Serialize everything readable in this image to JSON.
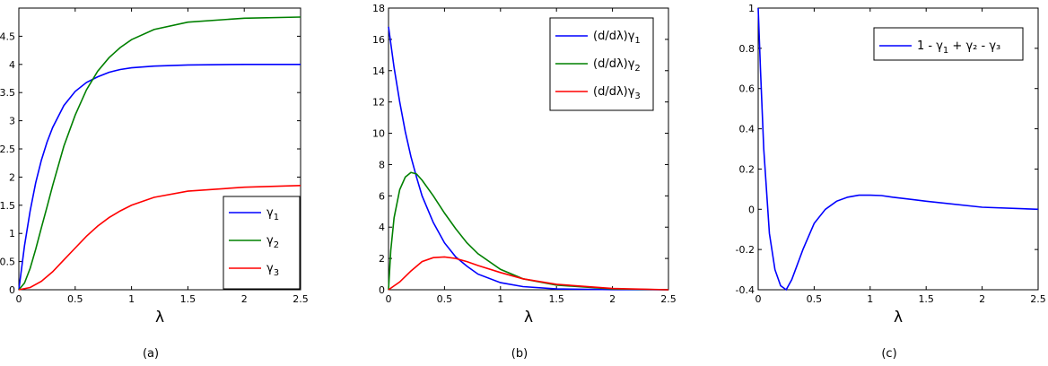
{
  "chart_data": [
    {
      "type": "line",
      "caption": "(a)",
      "xlabel": "λ",
      "ylabel": "",
      "xlim": [
        0,
        2.5
      ],
      "ylim": [
        0,
        5
      ],
      "xticks": [
        "0",
        "0.5",
        "1",
        "1.5",
        "2",
        "2.5"
      ],
      "yticks": [
        "0",
        "0.5",
        "1",
        "1.5",
        "2",
        "2.5",
        "3",
        "3.5",
        "4",
        "4.5"
      ],
      "legend_position": "bottom-right",
      "series": [
        {
          "name": "γ1",
          "legend_base": "γ",
          "legend_sub": "1",
          "legend_tail": "",
          "color": "#0000ff",
          "x": [
            0,
            0.05,
            0.1,
            0.15,
            0.2,
            0.25,
            0.3,
            0.4,
            0.5,
            0.6,
            0.7,
            0.8,
            0.9,
            1.0,
            1.2,
            1.5,
            2.0,
            2.5
          ],
          "y": [
            0,
            0.78,
            1.4,
            1.9,
            2.3,
            2.62,
            2.88,
            3.27,
            3.52,
            3.68,
            3.78,
            3.86,
            3.91,
            3.94,
            3.97,
            3.99,
            4.0,
            4.0
          ]
        },
        {
          "name": "γ2",
          "legend_base": "γ",
          "legend_sub": "2",
          "legend_tail": "",
          "color": "#008000",
          "x": [
            0,
            0.05,
            0.1,
            0.15,
            0.2,
            0.25,
            0.3,
            0.4,
            0.5,
            0.6,
            0.7,
            0.8,
            0.9,
            1.0,
            1.2,
            1.5,
            2.0,
            2.5
          ],
          "y": [
            0,
            0.12,
            0.38,
            0.72,
            1.1,
            1.47,
            1.85,
            2.55,
            3.1,
            3.55,
            3.88,
            4.12,
            4.3,
            4.44,
            4.62,
            4.75,
            4.82,
            4.84
          ]
        },
        {
          "name": "γ3",
          "legend_base": "γ",
          "legend_sub": "3",
          "legend_tail": "",
          "color": "#ff0000",
          "x": [
            0,
            0.1,
            0.2,
            0.3,
            0.4,
            0.5,
            0.6,
            0.7,
            0.8,
            0.9,
            1.0,
            1.2,
            1.5,
            2.0,
            2.5
          ],
          "y": [
            0,
            0.04,
            0.15,
            0.32,
            0.53,
            0.74,
            0.95,
            1.13,
            1.28,
            1.4,
            1.5,
            1.64,
            1.75,
            1.82,
            1.85
          ]
        }
      ]
    },
    {
      "type": "line",
      "caption": "(b)",
      "xlabel": "λ",
      "ylabel": "",
      "xlim": [
        0,
        2.5
      ],
      "ylim": [
        0,
        18
      ],
      "xticks": [
        "0",
        "0.5",
        "1",
        "1.5",
        "2",
        "2.5"
      ],
      "yticks": [
        "0",
        "2",
        "4",
        "6",
        "8",
        "10",
        "12",
        "14",
        "16",
        "18"
      ],
      "legend_position": "top-right",
      "series": [
        {
          "name": "(d/dλ)γ1",
          "legend_base": "(d/dλ)γ",
          "legend_sub": "1",
          "legend_tail": "",
          "color": "#0000ff",
          "x": [
            0,
            0.05,
            0.1,
            0.15,
            0.2,
            0.25,
            0.3,
            0.4,
            0.5,
            0.6,
            0.7,
            0.8,
            1.0,
            1.2,
            1.5,
            2.0,
            2.5
          ],
          "y": [
            16.8,
            14.2,
            12.0,
            10.1,
            8.5,
            7.2,
            6.0,
            4.3,
            3.0,
            2.1,
            1.5,
            1.0,
            0.45,
            0.2,
            0.05,
            0.01,
            0.0
          ]
        },
        {
          "name": "(d/dλ)γ2",
          "legend_base": "(d/dλ)γ",
          "legend_sub": "2",
          "legend_tail": "",
          "color": "#008000",
          "x": [
            0,
            0.02,
            0.05,
            0.1,
            0.15,
            0.2,
            0.25,
            0.3,
            0.4,
            0.5,
            0.6,
            0.7,
            0.8,
            1.0,
            1.2,
            1.5,
            2.0,
            2.5
          ],
          "y": [
            0,
            2.5,
            4.6,
            6.4,
            7.2,
            7.5,
            7.4,
            7.0,
            6.0,
            4.9,
            3.9,
            3.0,
            2.3,
            1.3,
            0.7,
            0.3,
            0.05,
            0.0
          ]
        },
        {
          "name": "(d/dλ)γ3",
          "legend_base": "(d/dλ)γ",
          "legend_sub": "3",
          "legend_tail": "",
          "color": "#ff0000",
          "x": [
            0,
            0.1,
            0.2,
            0.3,
            0.4,
            0.5,
            0.6,
            0.7,
            0.8,
            1.0,
            1.2,
            1.5,
            2.0,
            2.5
          ],
          "y": [
            0,
            0.5,
            1.2,
            1.8,
            2.05,
            2.1,
            2.0,
            1.8,
            1.55,
            1.1,
            0.7,
            0.35,
            0.08,
            0.0
          ]
        }
      ]
    },
    {
      "type": "line",
      "caption": "(c)",
      "xlabel": "λ",
      "ylabel": "",
      "xlim": [
        0,
        2.5
      ],
      "ylim": [
        -0.4,
        1
      ],
      "xticks": [
        "0",
        "0.5",
        "1",
        "1.5",
        "2",
        "2.5"
      ],
      "yticks": [
        "-0.4",
        "-0.2",
        "0",
        "0.2",
        "0.4",
        "0.6",
        "0.8",
        "1"
      ],
      "legend_position": "top-right",
      "series": [
        {
          "name": "1 - γ1 + γ2 - γ3",
          "legend_base": "1 - γ",
          "legend_sub": "1",
          "legend_tail": " + γ₂ - γ₃",
          "color": "#0000ff",
          "x": [
            0,
            0.02,
            0.05,
            0.1,
            0.15,
            0.2,
            0.25,
            0.3,
            0.4,
            0.5,
            0.6,
            0.7,
            0.8,
            0.9,
            1.0,
            1.1,
            1.2,
            1.5,
            2.0,
            2.5
          ],
          "y": [
            1.0,
            0.7,
            0.3,
            -0.12,
            -0.3,
            -0.38,
            -0.4,
            -0.35,
            -0.2,
            -0.07,
            0.0,
            0.04,
            0.06,
            0.07,
            0.07,
            0.068,
            0.06,
            0.04,
            0.01,
            0.0
          ]
        }
      ]
    }
  ]
}
